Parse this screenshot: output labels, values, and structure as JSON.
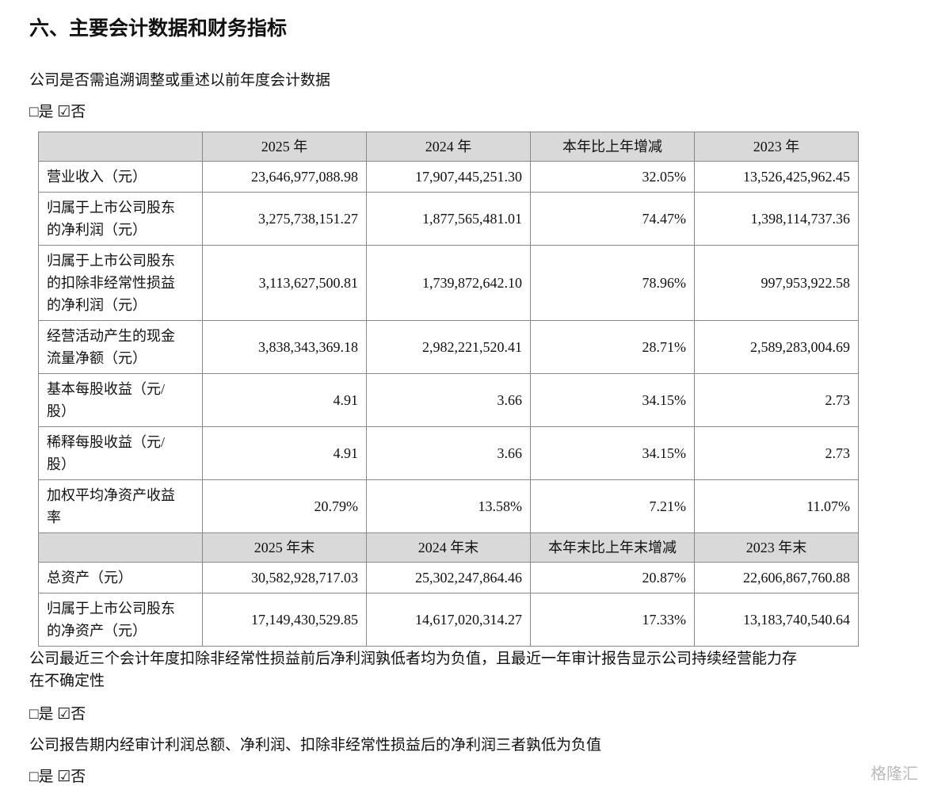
{
  "title": "六、主要会计数据和财务指标",
  "question1": "公司是否需追溯调整或重述以前年度会计数据",
  "choice1": "□是 ☑否",
  "table": {
    "header1": [
      "2025 年",
      "2024 年",
      "本年比上年增减",
      "2023 年"
    ],
    "rows": [
      {
        "label": [
          "营业收入（元）"
        ],
        "cells": [
          "23,646,977,088.98",
          "17,907,445,251.30",
          "32.05%",
          "13,526,425,962.45"
        ]
      },
      {
        "label": [
          "归属于上市公司股东",
          "的净利润（元）"
        ],
        "cells": [
          "3,275,738,151.27",
          "1,877,565,481.01",
          "74.47%",
          "1,398,114,737.36"
        ]
      },
      {
        "label": [
          "归属于上市公司股东",
          "的扣除非经常性损益",
          "的净利润（元）"
        ],
        "cells": [
          "3,113,627,500.81",
          "1,739,872,642.10",
          "78.96%",
          "997,953,922.58"
        ]
      },
      {
        "label": [
          "经营活动产生的现金",
          "流量净额（元）"
        ],
        "cells": [
          "3,838,343,369.18",
          "2,982,221,520.41",
          "28.71%",
          "2,589,283,004.69"
        ]
      },
      {
        "label": [
          "基本每股收益（元/",
          "股）"
        ],
        "cells": [
          "4.91",
          "3.66",
          "34.15%",
          "2.73"
        ]
      },
      {
        "label": [
          "稀释每股收益（元/",
          "股）"
        ],
        "cells": [
          "4.91",
          "3.66",
          "34.15%",
          "2.73"
        ]
      },
      {
        "label": [
          "加权平均净资产收益",
          "率"
        ],
        "cells": [
          "20.79%",
          "13.58%",
          "7.21%",
          "11.07%"
        ]
      }
    ],
    "header2": [
      "2025 年末",
      "2024 年末",
      "本年末比上年末增减",
      "2023 年末"
    ],
    "rows2": [
      {
        "label": [
          "总资产（元）"
        ],
        "cells": [
          "30,582,928,717.03",
          "25,302,247,864.46",
          "20.87%",
          "22,606,867,760.88"
        ]
      },
      {
        "label": [
          "归属于上市公司股东",
          "的净资产（元）"
        ],
        "cells": [
          "17,149,430,529.85",
          "14,617,020,314.27",
          "17.33%",
          "13,183,740,540.64"
        ]
      }
    ]
  },
  "question2": "公司最近三个会计年度扣除非经常性损益前后净利润孰低者均为负值，且最近一年审计报告显示公司持续经营能力存在不确定性",
  "choice2": "□是 ☑否",
  "question3": "公司报告期内经审计利润总额、净利润、扣除非经常性损益后的净利润三者孰低为负值",
  "choice3": "□是 ☑否",
  "watermark": "格隆汇"
}
